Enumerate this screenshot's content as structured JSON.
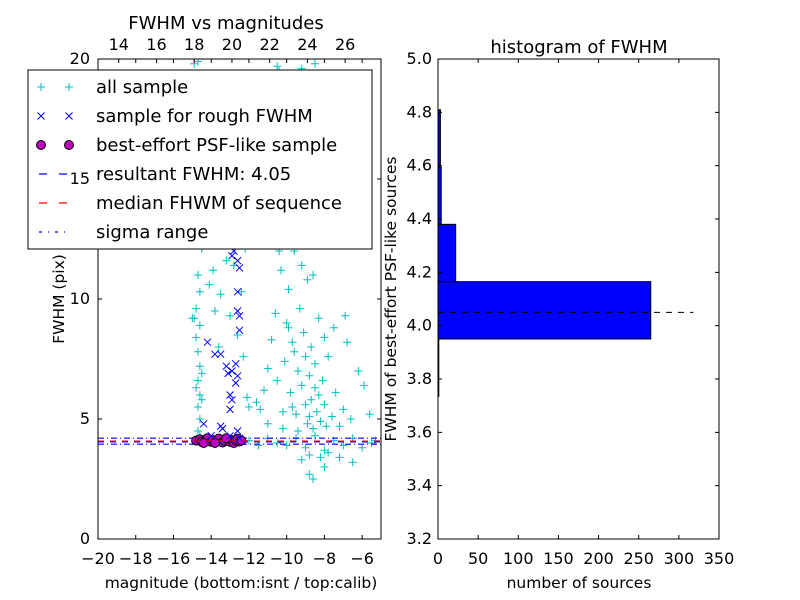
{
  "chart_data": [
    {
      "type": "scatter",
      "title": "FWHM vs magnitudes",
      "xlabel": "magnitude (bottom:isnt / top:calib)",
      "ylabel": "FWHM (pix)",
      "xlim": [
        -20,
        -5
      ],
      "ylim": [
        0,
        20
      ],
      "xticks": [
        "−20",
        "−18",
        "−16",
        "−14",
        "−12",
        "−10",
        "−8",
        "−6"
      ],
      "xtick_values": [
        -20,
        -18,
        -16,
        -14,
        -12,
        -10,
        -8,
        -6
      ],
      "yticks": [
        "0",
        "5",
        "10",
        "15",
        "20"
      ],
      "ytick_values": [
        0,
        5,
        10,
        15,
        20
      ],
      "top_xticks": [
        "14",
        "16",
        "18",
        "20",
        "22",
        "24",
        "26"
      ],
      "top_xtick_values": [
        14,
        16,
        18,
        20,
        22,
        24,
        26
      ],
      "calib_offset": 32.9,
      "legend": {
        "placement": "upper-left",
        "entries": [
          {
            "label": "all sample",
            "marker": "+",
            "color": "#00bfbf"
          },
          {
            "label": "sample for rough FWHM",
            "marker": "x",
            "color": "#0000ff"
          },
          {
            "label": "best-effort PSF-like sample",
            "marker": "o",
            "color": "#bf00bf"
          },
          {
            "label": "resultant FWHM: 4.05",
            "marker": "dashed",
            "color": "#0000ff"
          },
          {
            "label": "median FHWM of sequence",
            "marker": "dashed",
            "color": "#ff0000"
          },
          {
            "label": "sigma range",
            "marker": "dashdot",
            "color": "#0000ff"
          }
        ]
      },
      "resultant_fwhm": 4.05,
      "median_fwhm": 4.08,
      "sigma_range": [
        3.95,
        4.2
      ],
      "series": [
        {
          "name": "all sample",
          "color": "#00bfbf",
          "points": [
            [
              -14.7,
              4.5
            ],
            [
              -14.6,
              5.0
            ],
            [
              -14.7,
              5.5
            ],
            [
              -14.6,
              6.0
            ],
            [
              -14.7,
              6.6
            ],
            [
              -14.6,
              7.2
            ],
            [
              -14.7,
              7.8
            ],
            [
              -14.8,
              8.4
            ],
            [
              -14.9,
              9.2
            ],
            [
              -14.8,
              9.6
            ],
            [
              -14.6,
              10.3
            ],
            [
              -14.7,
              11.0
            ],
            [
              -14.5,
              12.1
            ],
            [
              -14.6,
              12.6
            ],
            [
              -15.0,
              9.2
            ],
            [
              -14.5,
              5.8
            ],
            [
              -14.5,
              6.9
            ],
            [
              -14.6,
              4.3
            ],
            [
              -14.8,
              6.3
            ],
            [
              -14.6,
              8.9
            ],
            [
              -13.8,
              9.5
            ],
            [
              -13.5,
              10.2
            ],
            [
              -13.2,
              11.6
            ],
            [
              -13.0,
              9.3
            ],
            [
              -12.6,
              8.5
            ],
            [
              -12.3,
              7.6
            ],
            [
              -12.1,
              5.9
            ],
            [
              -12.0,
              5.5
            ],
            [
              -13.6,
              8.0
            ],
            [
              -13.9,
              11.2
            ],
            [
              -12.8,
              11.4
            ],
            [
              -12.4,
              10.3
            ],
            [
              -12.2,
              12.1
            ],
            [
              -13.4,
              12.4
            ],
            [
              -14.1,
              10.6
            ],
            [
              -11.6,
              5.7
            ],
            [
              -11.4,
              5.4
            ],
            [
              -11.2,
              6.2
            ],
            [
              -11.0,
              7.1
            ],
            [
              -10.8,
              8.3
            ],
            [
              -10.6,
              9.4
            ],
            [
              -10.5,
              6.6
            ],
            [
              -10.3,
              11.2
            ],
            [
              -10.2,
              5.3
            ],
            [
              -10.1,
              7.4
            ],
            [
              -10.0,
              9.0
            ],
            [
              -9.9,
              10.4
            ],
            [
              -9.8,
              6.1
            ],
            [
              -9.7,
              8.2
            ],
            [
              -9.6,
              12.0
            ],
            [
              -9.5,
              5.2
            ],
            [
              -9.4,
              7.0
            ],
            [
              -9.3,
              9.6
            ],
            [
              -9.2,
              6.4
            ],
            [
              -9.1,
              8.6
            ],
            [
              -9.0,
              5.6
            ],
            [
              -9.0,
              7.6
            ],
            [
              -8.9,
              10.8
            ],
            [
              -8.9,
              4.8
            ],
            [
              -8.8,
              6.8
            ],
            [
              -8.8,
              5.1
            ],
            [
              -8.7,
              8.0
            ],
            [
              -8.7,
              5.8
            ],
            [
              -8.6,
              4.6
            ],
            [
              -8.5,
              6.3
            ],
            [
              -8.5,
              7.3
            ],
            [
              -8.4,
              5.3
            ],
            [
              -8.3,
              9.2
            ],
            [
              -8.2,
              4.9
            ],
            [
              -8.1,
              6.6
            ],
            [
              -8.0,
              5.6
            ],
            [
              -7.9,
              4.7
            ],
            [
              -7.8,
              7.6
            ],
            [
              -7.6,
              5.1
            ],
            [
              -7.4,
              6.1
            ],
            [
              -7.2,
              4.7
            ],
            [
              -7.0,
              5.4
            ],
            [
              -6.8,
              8.2
            ],
            [
              -6.6,
              5.0
            ],
            [
              -6.2,
              7.0
            ],
            [
              -5.9,
              6.4
            ],
            [
              -5.6,
              5.2
            ],
            [
              -9.6,
              7.8
            ],
            [
              -9.2,
              11.4
            ],
            [
              -8.6,
              11.0
            ],
            [
              -10.4,
              12.0
            ],
            [
              -9.4,
              4.5
            ],
            [
              -9.7,
              5.5
            ],
            [
              -10.2,
              4.6
            ],
            [
              -11.0,
              4.8
            ],
            [
              -8.3,
              6.0
            ],
            [
              -7.5,
              8.8
            ],
            [
              -6.9,
              9.3
            ],
            [
              -8.0,
              8.4
            ],
            [
              -9.9,
              8.8
            ],
            [
              -12.0,
              4.1
            ],
            [
              -11.5,
              3.9
            ],
            [
              -11.0,
              4.2
            ],
            [
              -10.5,
              4.0
            ],
            [
              -10.0,
              3.9
            ],
            [
              -9.5,
              4.2
            ],
            [
              -9.0,
              3.8
            ],
            [
              -8.5,
              4.3
            ],
            [
              -8.0,
              3.7
            ],
            [
              -7.5,
              4.1
            ],
            [
              -7.0,
              3.9
            ],
            [
              -6.5,
              4.2
            ],
            [
              -6.0,
              3.8
            ],
            [
              -5.5,
              4.0
            ],
            [
              -5.3,
              4.1
            ],
            [
              -8.8,
              3.5
            ],
            [
              -8.2,
              3.4
            ],
            [
              -7.8,
              3.6
            ],
            [
              -8.8,
              2.7
            ],
            [
              -8.6,
              2.5
            ],
            [
              -8.0,
              3.0
            ],
            [
              -7.2,
              3.4
            ],
            [
              -6.5,
              3.2
            ],
            [
              -9.2,
              3.3
            ],
            [
              -14.9,
              19.8
            ],
            [
              -14.7,
              19.9
            ],
            [
              -10.5,
              19.7
            ],
            [
              -10.4,
              19.5
            ],
            [
              -9.2,
              19.6
            ],
            [
              -8.5,
              19.8
            ]
          ]
        },
        {
          "name": "sample for rough FWHM",
          "color": "#0000ff",
          "points": [
            [
              -14.4,
              4.8
            ],
            [
              -13.5,
              4.7
            ],
            [
              -13.4,
              4.6
            ],
            [
              -12.6,
              4.5
            ],
            [
              -14.2,
              8.2
            ],
            [
              -13.8,
              7.7
            ],
            [
              -13.5,
              7.7
            ],
            [
              -13.2,
              7.2
            ],
            [
              -13.1,
              6.9
            ],
            [
              -12.9,
              7.0
            ],
            [
              -12.7,
              7.3
            ],
            [
              -12.6,
              6.8
            ],
            [
              -13.0,
              6.0
            ],
            [
              -12.9,
              5.8
            ],
            [
              -13.0,
              5.4
            ],
            [
              -12.7,
              6.5
            ],
            [
              -12.5,
              8.7
            ],
            [
              -12.6,
              9.5
            ],
            [
              -12.5,
              9.3
            ],
            [
              -12.6,
              10.3
            ],
            [
              -12.9,
              11.8
            ],
            [
              -12.6,
              11.6
            ],
            [
              -12.8,
              12.0
            ],
            [
              -12.5,
              11.3
            ],
            [
              -14.0,
              4.3
            ],
            [
              -13.0,
              4.3
            ],
            [
              -12.5,
              4.2
            ]
          ]
        },
        {
          "name": "best-effort PSF-like sample",
          "color": "#bf00bf",
          "points": [
            [
              -14.8,
              4.1
            ],
            [
              -14.6,
              4.15
            ],
            [
              -14.5,
              4.05
            ],
            [
              -14.3,
              4.1
            ],
            [
              -14.2,
              4.2
            ],
            [
              -14.0,
              4.05
            ],
            [
              -13.9,
              4.12
            ],
            [
              -13.7,
              4.08
            ],
            [
              -13.6,
              4.18
            ],
            [
              -13.4,
              4.02
            ],
            [
              -13.3,
              4.1
            ],
            [
              -13.1,
              4.15
            ],
            [
              -13.0,
              4.05
            ],
            [
              -12.9,
              4.12
            ],
            [
              -12.8,
              4.0
            ],
            [
              -12.7,
              4.1
            ],
            [
              -12.6,
              4.18
            ],
            [
              -12.5,
              4.06
            ],
            [
              -12.4,
              4.1
            ],
            [
              -14.4,
              4.0
            ],
            [
              -13.8,
              4.0
            ],
            [
              -13.2,
              4.2
            ]
          ]
        }
      ]
    },
    {
      "type": "bar",
      "orientation": "horizontal",
      "title": "histogram of FWHM",
      "xlabel": "number of sources",
      "ylabel": "FWHM of best-effort PSF-like sources",
      "xlim": [
        0,
        350
      ],
      "ylim": [
        3.2,
        5.0
      ],
      "xticks": [
        "0",
        "50",
        "100",
        "150",
        "200",
        "250",
        "300",
        "350"
      ],
      "xtick_values": [
        0,
        50,
        100,
        150,
        200,
        250,
        300,
        350
      ],
      "yticks": [
        "3.2",
        "3.4",
        "3.6",
        "3.8",
        "4.0",
        "4.2",
        "4.4",
        "4.6",
        "4.8",
        "5.0"
      ],
      "ytick_values": [
        3.2,
        3.4,
        3.6,
        3.8,
        4.0,
        4.2,
        4.4,
        4.6,
        4.8,
        5.0
      ],
      "bar_color": "#0000ff",
      "bins": [
        [
          3.735,
          3.95
        ],
        [
          3.95,
          4.165
        ],
        [
          4.165,
          4.38
        ],
        [
          4.38,
          4.595
        ],
        [
          4.595,
          4.81
        ]
      ],
      "counts": [
        1,
        265,
        22,
        4,
        3
      ],
      "reference_line": {
        "value": 4.05,
        "extent": [
          0,
          318
        ],
        "style": "dashed",
        "color": "#000000"
      }
    }
  ]
}
